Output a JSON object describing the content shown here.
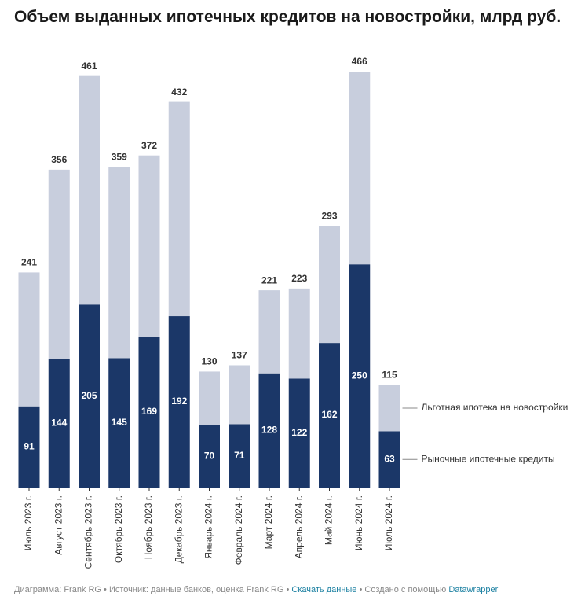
{
  "chart_data": {
    "type": "stacked-bar",
    "title": "Объем выданных ипотечных кредитов на новостройки, млрд руб.",
    "categories": [
      "Июль 2023 г.",
      "Август 2023 г.",
      "Сентябрь 2023 г.",
      "Октябрь 2023 г.",
      "Ноябрь 2023 г.",
      "Декабрь 2023 г.",
      "Январь 2024 г.",
      "Февраль 2024 г.",
      "Март 2024 г.",
      "Апрель 2024 г.",
      "Май 2024 г.",
      "Июнь 2024 г.",
      "Июль 2024 г."
    ],
    "series": [
      {
        "name": "Рыночные ипотечные кредиты",
        "color": "#1b3768",
        "values": [
          91,
          144,
          205,
          145,
          169,
          192,
          70,
          71,
          128,
          122,
          162,
          250,
          63
        ]
      },
      {
        "name": "Льготная ипотека на новостройки",
        "color": "#c8cedd",
        "values": [
          150,
          212,
          256,
          214,
          203,
          240,
          60,
          66,
          93,
          101,
          131,
          216,
          52
        ]
      }
    ],
    "totals": [
      241,
      356,
      461,
      359,
      372,
      432,
      130,
      137,
      221,
      223,
      293,
      466,
      115
    ],
    "footer": {
      "credit": "Диаграмма: Frank RG • Источник: данные банков, оценка Frank RG • ",
      "download": "Скачать данные",
      "made": " • Создано с помощью ",
      "tool": "Datawrapper"
    }
  }
}
